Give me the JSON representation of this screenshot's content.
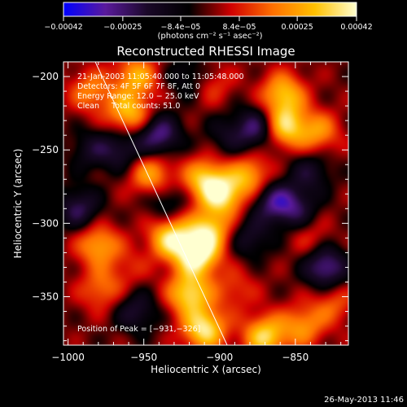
{
  "chart_data": {
    "type": "heatmap",
    "title": "Reconstructed RHESSI Image",
    "xlabel": "Heliocentric X (arcsec)",
    "ylabel": "Heliocentric Y (arcsec)",
    "xlim": [
      -1003,
      -815
    ],
    "ylim": [
      -383,
      -190
    ],
    "x_ticks": [
      -1000,
      -950,
      -900,
      -850
    ],
    "x_tick_labels": [
      "−1000",
      "−950",
      "−900",
      "−850"
    ],
    "y_ticks": [
      -200,
      -250,
      -300,
      -350
    ],
    "y_tick_labels": [
      "−200",
      "−250",
      "−300",
      "−350"
    ],
    "colorbar": {
      "range": [
        -0.00042,
        0.00042
      ],
      "ticks": [
        -0.00042,
        -0.00025,
        -8.4e-05,
        8.4e-05,
        0.00025,
        0.00042
      ],
      "tick_labels": [
        "−0.00042",
        "−0.00025",
        "−8.4e−05",
        "8.4e−05",
        "0.00025",
        "0.00042"
      ],
      "label": "(photons cm⁻² s⁻¹ asec⁻²)",
      "colors": [
        "#0000ff",
        "#5a1a9c",
        "#1a0828",
        "#000000",
        "#d00000",
        "#ff7000",
        "#ffc000",
        "#ffffd0"
      ]
    },
    "annotations": [
      "21-Jan-2003 11:05:40.000 to 11:05:48.000",
      "Detectors: 4F 5F 6F 7F 8F, Att 0",
      "Energy Range: 12.0 − 25.0 keV",
      "Clean     Total counts: 51.0"
    ],
    "peak_label": "Position of Peak = [−931,−326]",
    "peak_position": [
      -931,
      -326
    ],
    "blobs": [
      {
        "x": -915,
        "y": -322,
        "amp": 0.00042
      },
      {
        "x": -932,
        "y": -310,
        "amp": 0.00036
      },
      {
        "x": -907,
        "y": -305,
        "amp": 0.00032
      },
      {
        "x": -898,
        "y": -281,
        "amp": 0.00034
      },
      {
        "x": -910,
        "y": -270,
        "amp": 0.0003
      },
      {
        "x": -920,
        "y": -348,
        "amp": 0.00035
      },
      {
        "x": -910,
        "y": -372,
        "amp": 0.00038
      },
      {
        "x": -880,
        "y": -268,
        "amp": 0.00026
      },
      {
        "x": -857,
        "y": -234,
        "amp": 0.00035
      },
      {
        "x": -858,
        "y": -212,
        "amp": 0.0003
      },
      {
        "x": -835,
        "y": -238,
        "amp": 0.00022
      },
      {
        "x": -960,
        "y": -225,
        "amp": 0.0003
      },
      {
        "x": -955,
        "y": -200,
        "amp": 0.00026
      },
      {
        "x": -945,
        "y": -267,
        "amp": 0.00026
      },
      {
        "x": -980,
        "y": -315,
        "amp": 0.00026
      },
      {
        "x": -985,
        "y": -210,
        "amp": 0.0002
      },
      {
        "x": -870,
        "y": -377,
        "amp": 0.00034
      },
      {
        "x": -845,
        "y": -370,
        "amp": 0.00022
      },
      {
        "x": -978,
        "y": -345,
        "amp": 0.00018
      },
      {
        "x": -825,
        "y": -355,
        "amp": 0.00015
      },
      {
        "x": -890,
        "y": -345,
        "amp": 0.00012
      },
      {
        "x": -840,
        "y": -310,
        "amp": 0.0001
      },
      {
        "x": -905,
        "y": -205,
        "amp": 0.00012
      },
      {
        "x": -875,
        "y": -235,
        "amp": -0.00026
      },
      {
        "x": -865,
        "y": -285,
        "amp": -0.00024
      },
      {
        "x": -830,
        "y": -330,
        "amp": -0.0003
      },
      {
        "x": -940,
        "y": -240,
        "amp": -0.00028
      },
      {
        "x": -993,
        "y": -290,
        "amp": -0.00022
      },
      {
        "x": -850,
        "y": -290,
        "amp": -0.0002
      },
      {
        "x": -955,
        "y": -360,
        "amp": -0.00018
      },
      {
        "x": -965,
        "y": -250,
        "amp": -0.00018
      },
      {
        "x": -880,
        "y": -310,
        "amp": -0.00016
      },
      {
        "x": -985,
        "y": -250,
        "amp": -0.00014
      },
      {
        "x": -840,
        "y": -265,
        "amp": -0.00016
      },
      {
        "x": -920,
        "y": -200,
        "amp": -0.00014
      },
      {
        "x": -935,
        "y": -285,
        "amp": -0.00014
      },
      {
        "x": -960,
        "y": -330,
        "amp": 8e-05
      },
      {
        "x": -895,
        "y": -240,
        "amp": -0.00012
      }
    ],
    "limb_line": [
      [
        -982,
        -190
      ],
      [
        -895,
        -383
      ]
    ]
  },
  "footer": {
    "date": "26-May-2013 11:46"
  }
}
